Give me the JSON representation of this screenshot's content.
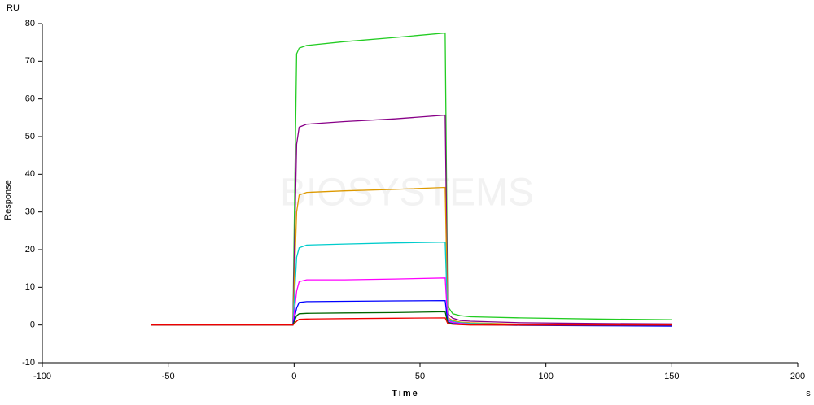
{
  "chart_data": {
    "type": "line",
    "ylabel_unit": "RU",
    "ylabel": "Response",
    "xlabel": "Time",
    "xlabel_unit": "s",
    "watermark": "BIOSYSTEMS",
    "x": [
      -57,
      -30,
      -0.5,
      1,
      2,
      5,
      20,
      40,
      60,
      61,
      63,
      66,
      70,
      90,
      120,
      150
    ],
    "xlim": [
      -100,
      200
    ],
    "xticks": [
      -100,
      -50,
      0,
      50,
      100,
      150,
      200
    ],
    "ylim": [
      -10,
      80
    ],
    "yticks": [
      -10,
      0,
      10,
      20,
      30,
      40,
      50,
      60,
      70,
      80
    ],
    "series": [
      {
        "color": "#22cc22",
        "values": [
          0,
          0,
          0,
          72,
          73.5,
          74.2,
          75.2,
          76.3,
          77.5,
          5,
          3,
          2.5,
          2.2,
          1.9,
          1.6,
          1.4
        ]
      },
      {
        "color": "#880088",
        "values": [
          0,
          0,
          0,
          48,
          52.5,
          53.3,
          54,
          54.7,
          55.7,
          3,
          1.8,
          1.2,
          1,
          0.6,
          0.4,
          0.3
        ]
      },
      {
        "color": "#dd9900",
        "values": [
          0,
          0,
          0,
          30,
          34.5,
          35.2,
          35.6,
          36,
          36.5,
          2,
          1.2,
          0.8,
          0.6,
          0.2,
          0.1,
          0
        ]
      },
      {
        "color": "#00cccc",
        "values": [
          0,
          0,
          0,
          18,
          20.5,
          21.2,
          21.5,
          21.8,
          22,
          1.5,
          0.9,
          0.6,
          0.4,
          0.1,
          0,
          0
        ]
      },
      {
        "color": "#ff00ff",
        "values": [
          0,
          0,
          0,
          9,
          11.5,
          12,
          12,
          12.2,
          12.5,
          1.2,
          0.7,
          0.4,
          0.2,
          0,
          -0.1,
          -0.2
        ]
      },
      {
        "color": "#0000ff",
        "values": [
          0,
          0,
          0,
          4.5,
          6,
          6.2,
          6.3,
          6.4,
          6.5,
          0.8,
          0.4,
          0.2,
          0.1,
          -0.1,
          -0.2,
          -0.3
        ]
      },
      {
        "color": "#006600",
        "values": [
          0,
          0,
          0,
          2.5,
          3,
          3.1,
          3.2,
          3.3,
          3.5,
          0.6,
          0.3,
          0.2,
          0.1,
          0,
          0,
          0
        ]
      },
      {
        "color": "#ee0000",
        "values": [
          0,
          0,
          0,
          1,
          1.5,
          1.6,
          1.7,
          1.8,
          1.9,
          0.4,
          0.2,
          0.1,
          0,
          0,
          0,
          0
        ]
      }
    ]
  }
}
